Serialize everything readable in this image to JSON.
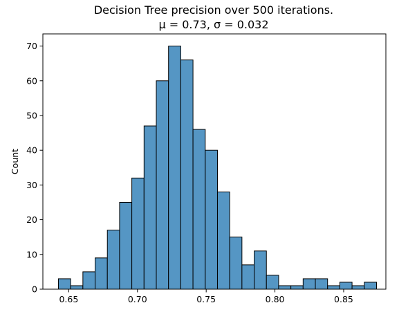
{
  "chart_data": {
    "type": "bar",
    "title": "Decision Tree precision over 500 iterations.",
    "subtitle": "μ = 0.73, σ = 0.032",
    "xlabel": "",
    "ylabel": "Count",
    "xlim": [
      0.6312,
      0.8807
    ],
    "ylim": [
      0,
      73.5
    ],
    "grid": false,
    "bin_edges": [
      0.6425,
      0.6514,
      0.6603,
      0.6692,
      0.6781,
      0.687,
      0.6959,
      0.7048,
      0.7137,
      0.7226,
      0.7315,
      0.7404,
      0.7493,
      0.7582,
      0.7671,
      0.776,
      0.7849,
      0.7938,
      0.8027,
      0.8116,
      0.8205,
      0.8294,
      0.8383,
      0.8472,
      0.8561,
      0.865,
      0.8739
    ],
    "counts": [
      3,
      1,
      5,
      9,
      17,
      25,
      32,
      47,
      60,
      70,
      66,
      46,
      40,
      28,
      15,
      7,
      11,
      4,
      1,
      1,
      3,
      3,
      1,
      2,
      1,
      2
    ],
    "x_ticks": [
      {
        "value": 0.65,
        "label": "0.65"
      },
      {
        "value": 0.7,
        "label": "0.70"
      },
      {
        "value": 0.75,
        "label": "0.75"
      },
      {
        "value": 0.8,
        "label": "0.80"
      },
      {
        "value": 0.85,
        "label": "0.85"
      }
    ],
    "y_ticks": [
      {
        "value": 0,
        "label": "0"
      },
      {
        "value": 10,
        "label": "10"
      },
      {
        "value": 20,
        "label": "20"
      },
      {
        "value": 30,
        "label": "30"
      },
      {
        "value": 40,
        "label": "40"
      },
      {
        "value": 50,
        "label": "50"
      },
      {
        "value": 60,
        "label": "60"
      },
      {
        "value": 70,
        "label": "70"
      }
    ],
    "bar_color": "#5596c4",
    "bar_edge_color": "#000000"
  }
}
